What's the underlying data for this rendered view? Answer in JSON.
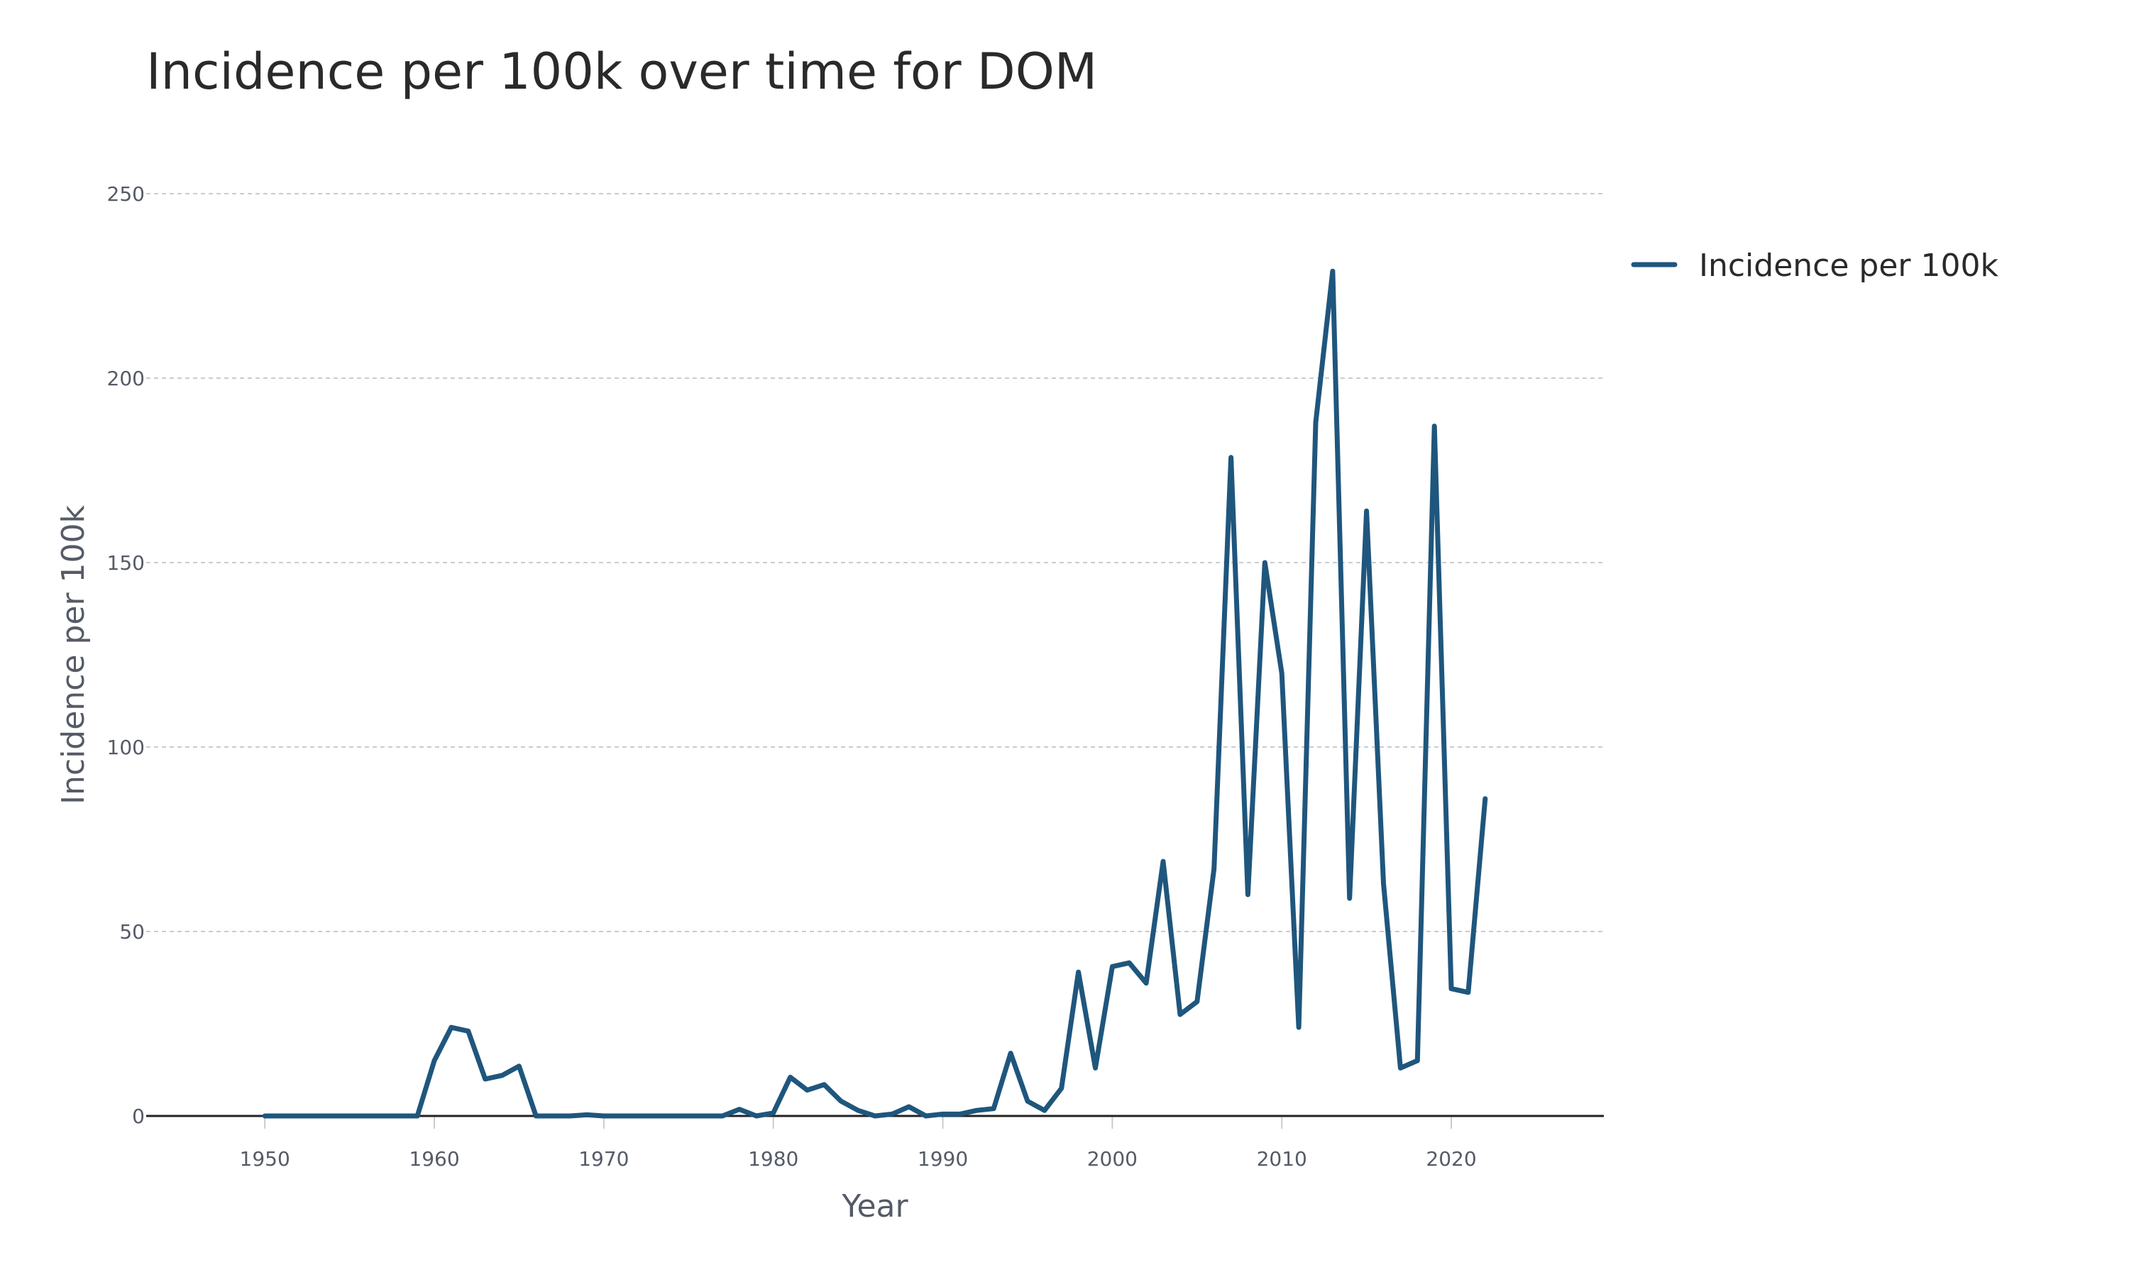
{
  "chart_data": {
    "type": "line",
    "title": "Incidence per 100k over time for DOM",
    "xlabel": "Year",
    "ylabel": "Incidence per 100k",
    "xlim": [
      1943,
      2029
    ],
    "ylim": [
      0,
      250
    ],
    "x_ticks": [
      1950,
      1960,
      1970,
      1980,
      1990,
      2000,
      2010,
      2020
    ],
    "y_ticks": [
      0,
      50,
      100,
      150,
      200,
      250
    ],
    "grid": true,
    "legend_position": "top-right",
    "series": [
      {
        "name": "Incidence per 100k",
        "color": "#1f567d",
        "x": [
          1950,
          1951,
          1952,
          1953,
          1954,
          1955,
          1956,
          1957,
          1958,
          1959,
          1960,
          1961,
          1962,
          1963,
          1964,
          1965,
          1966,
          1967,
          1968,
          1969,
          1970,
          1971,
          1972,
          1973,
          1974,
          1975,
          1976,
          1977,
          1978,
          1979,
          1980,
          1981,
          1982,
          1983,
          1984,
          1985,
          1986,
          1987,
          1988,
          1989,
          1990,
          1991,
          1992,
          1993,
          1994,
          1995,
          1996,
          1997,
          1998,
          1999,
          2000,
          2001,
          2002,
          2003,
          2004,
          2005,
          2006,
          2007,
          2008,
          2009,
          2010,
          2011,
          2012,
          2013,
          2014,
          2015,
          2016,
          2017,
          2018,
          2019,
          2020,
          2021,
          2022
        ],
        "y": [
          0,
          0,
          0,
          0,
          0,
          0,
          0,
          0,
          0,
          0,
          15,
          24,
          23,
          10,
          11,
          13.5,
          0,
          0,
          0,
          0.3,
          0,
          0,
          0,
          0,
          0,
          0,
          0,
          0,
          1.8,
          0,
          0.8,
          10.5,
          7,
          8.5,
          4,
          1.5,
          0,
          0.5,
          2.5,
          0,
          0.5,
          0.5,
          1.5,
          2,
          17,
          4,
          1.5,
          7.5,
          39,
          13,
          40.5,
          41.5,
          36,
          69,
          27.5,
          31,
          67,
          178.5,
          60,
          150,
          120,
          24,
          188,
          229,
          59,
          164,
          63,
          13,
          15,
          187,
          34.5,
          33.5,
          86
        ]
      }
    ]
  }
}
